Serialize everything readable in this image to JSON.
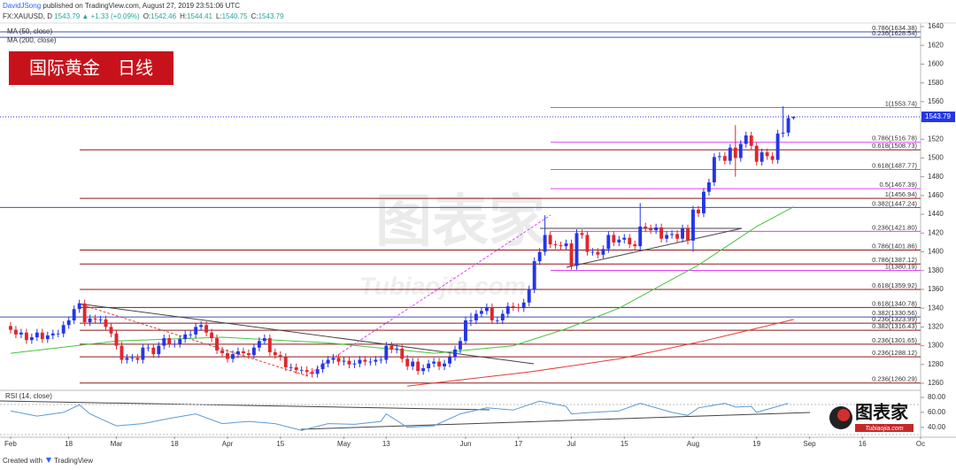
{
  "header": {
    "author": "DavidJSong",
    "published": "published on TradingView.com, August 27, 2019 23:51:06 UTC",
    "symbol": "FX:XAUUSD, D",
    "last": "1543.79",
    "change": "▲ +1.33 (+0.09%)",
    "ohlc": [
      {
        "key": "O:",
        "value": "1542.46"
      },
      {
        "key": "H:",
        "value": "1544.41"
      },
      {
        "key": "L:",
        "value": "1540.75"
      },
      {
        "key": "C:",
        "value": "1543.79"
      }
    ]
  },
  "chart_data": {
    "type": "candlestick",
    "title": "国际黄金　日线",
    "up_color": "#2336e8",
    "down_color": "#e0262c",
    "xlim": [
      -2,
      172
    ],
    "xticks": [
      {
        "value": 0,
        "label": "Feb"
      },
      {
        "value": 11,
        "label": "18"
      },
      {
        "value": 20,
        "label": "Mar"
      },
      {
        "value": 31,
        "label": "18"
      },
      {
        "value": 41,
        "label": "Apr"
      },
      {
        "value": 51,
        "label": "15"
      },
      {
        "value": 63,
        "label": "May"
      },
      {
        "value": 71,
        "label": "13"
      },
      {
        "value": 86,
        "label": "Jun"
      },
      {
        "value": 96,
        "label": "17"
      },
      {
        "value": 106,
        "label": "Jul"
      },
      {
        "value": 116,
        "label": "15"
      },
      {
        "value": 129,
        "label": "Aug"
      },
      {
        "value": 141,
        "label": "19"
      },
      {
        "value": 151,
        "label": "Sep"
      },
      {
        "value": 161,
        "label": "16"
      },
      {
        "value": 172,
        "label": "Oc"
      }
    ],
    "ylim": [
      1253.4,
      1641.9
    ],
    "yticks": [
      1260,
      1280,
      1300,
      1320,
      1340,
      1360,
      1380,
      1400,
      1420,
      1440,
      1460,
      1480,
      1500,
      1520,
      1540,
      1560,
      1580,
      1600,
      1620,
      1640
    ],
    "candles": [
      [
        1321,
        1325,
        1313,
        1317
      ],
      [
        1317,
        1321,
        1308,
        1312
      ],
      [
        1312,
        1318,
        1308,
        1314
      ],
      [
        1314,
        1318,
        1302,
        1306
      ],
      [
        1306,
        1313,
        1302,
        1309
      ],
      [
        1309,
        1318,
        1305,
        1314
      ],
      [
        1314,
        1318,
        1303,
        1307
      ],
      [
        1307,
        1315,
        1303,
        1311
      ],
      [
        1311,
        1317,
        1307,
        1313
      ],
      [
        1313,
        1317,
        1309,
        1313
      ],
      [
        1313,
        1326,
        1309,
        1322
      ],
      [
        1322,
        1331,
        1318,
        1327
      ],
      [
        1327,
        1343,
        1323,
        1339
      ],
      [
        1339,
        1349,
        1335,
        1345
      ],
      [
        1345,
        1349,
        1321,
        1325
      ],
      [
        1325,
        1333,
        1321,
        1329
      ],
      [
        1329,
        1333,
        1324,
        1328
      ],
      [
        1328,
        1332,
        1324,
        1328
      ],
      [
        1328,
        1332,
        1316,
        1320
      ],
      [
        1320,
        1324,
        1309,
        1313
      ],
      [
        1313,
        1317,
        1296,
        1300
      ],
      [
        1300,
        1304,
        1281,
        1285
      ],
      [
        1285,
        1291,
        1281,
        1287
      ],
      [
        1287,
        1291,
        1283,
        1287
      ],
      [
        1287,
        1291,
        1281,
        1285
      ],
      [
        1285,
        1302,
        1281,
        1298
      ],
      [
        1298,
        1302,
        1294,
        1298
      ],
      [
        1298,
        1302,
        1287,
        1291
      ],
      [
        1291,
        1304,
        1287,
        1300
      ],
      [
        1300,
        1312,
        1296,
        1308
      ],
      [
        1308,
        1312,
        1298,
        1302
      ],
      [
        1302,
        1306,
        1298,
        1302
      ],
      [
        1302,
        1311,
        1298,
        1307
      ],
      [
        1307,
        1316,
        1303,
        1312
      ],
      [
        1312,
        1316,
        1308,
        1312
      ],
      [
        1312,
        1324,
        1308,
        1320
      ],
      [
        1320,
        1326,
        1316,
        1322
      ],
      [
        1322,
        1326,
        1310,
        1314
      ],
      [
        1314,
        1318,
        1304,
        1308
      ],
      [
        1308,
        1312,
        1291,
        1295
      ],
      [
        1295,
        1299,
        1288,
        1292
      ],
      [
        1292,
        1296,
        1282,
        1286
      ],
      [
        1286,
        1295,
        1282,
        1291
      ],
      [
        1291,
        1298,
        1287,
        1294
      ],
      [
        1294,
        1298,
        1288,
        1292
      ],
      [
        1292,
        1296,
        1286,
        1290
      ],
      [
        1290,
        1302,
        1286,
        1298
      ],
      [
        1298,
        1309,
        1294,
        1305
      ],
      [
        1305,
        1312,
        1301,
        1308
      ],
      [
        1308,
        1312,
        1289,
        1293
      ],
      [
        1293,
        1297,
        1286,
        1290
      ],
      [
        1290,
        1294,
        1284,
        1288
      ],
      [
        1288,
        1292,
        1273,
        1277
      ],
      [
        1277,
        1281,
        1273,
        1277
      ],
      [
        1277,
        1281,
        1270,
        1274
      ],
      [
        1274,
        1278,
        1270,
        1274
      ],
      [
        1274,
        1278,
        1268,
        1272
      ],
      [
        1272,
        1276,
        1266,
        1270
      ],
      [
        1270,
        1279,
        1266,
        1275
      ],
      [
        1275,
        1285,
        1271,
        1281
      ],
      [
        1281,
        1289,
        1277,
        1285
      ],
      [
        1285,
        1291,
        1281,
        1287
      ],
      [
        1287,
        1291,
        1279,
        1283
      ],
      [
        1283,
        1288,
        1279,
        1284
      ],
      [
        1284,
        1288,
        1276,
        1280
      ],
      [
        1280,
        1285,
        1276,
        1281
      ],
      [
        1281,
        1289,
        1277,
        1285
      ],
      [
        1285,
        1289,
        1279,
        1283
      ],
      [
        1283,
        1287,
        1279,
        1283
      ],
      [
        1283,
        1289,
        1279,
        1285
      ],
      [
        1285,
        1289,
        1281,
        1285
      ],
      [
        1285,
        1304,
        1281,
        1300
      ],
      [
        1300,
        1304,
        1292,
        1296
      ],
      [
        1296,
        1301,
        1292,
        1297
      ],
      [
        1297,
        1301,
        1282,
        1286
      ],
      [
        1286,
        1290,
        1274,
        1278
      ],
      [
        1278,
        1287,
        1274,
        1283
      ],
      [
        1283,
        1287,
        1269,
        1273
      ],
      [
        1273,
        1280,
        1269,
        1276
      ],
      [
        1276,
        1285,
        1272,
        1281
      ],
      [
        1281,
        1287,
        1277,
        1283
      ],
      [
        1283,
        1287,
        1274,
        1278
      ],
      [
        1278,
        1285,
        1274,
        1281
      ],
      [
        1281,
        1292,
        1277,
        1288
      ],
      [
        1288,
        1300,
        1284,
        1296
      ],
      [
        1296,
        1309,
        1292,
        1305
      ],
      [
        1305,
        1331,
        1301,
        1327
      ],
      [
        1327,
        1335,
        1321,
        1327
      ],
      [
        1327,
        1338,
        1323,
        1334
      ],
      [
        1334,
        1341,
        1330,
        1337
      ],
      [
        1337,
        1345,
        1333,
        1341
      ],
      [
        1341,
        1345,
        1323,
        1327
      ],
      [
        1327,
        1331,
        1323,
        1327
      ],
      [
        1327,
        1338,
        1323,
        1334
      ],
      [
        1334,
        1346,
        1330,
        1342
      ],
      [
        1342,
        1346,
        1337,
        1341
      ],
      [
        1341,
        1345,
        1336,
        1340
      ],
      [
        1340,
        1350,
        1336,
        1346
      ],
      [
        1346,
        1364,
        1342,
        1360
      ],
      [
        1360,
        1394,
        1356,
        1390
      ],
      [
        1390,
        1404,
        1386,
        1400
      ],
      [
        1400,
        1439,
        1396,
        1418
      ],
      [
        1418,
        1422,
        1404,
        1408
      ],
      [
        1408,
        1412,
        1403,
        1407
      ],
      [
        1407,
        1411,
        1402,
        1406
      ],
      [
        1406,
        1413,
        1402,
        1409
      ],
      [
        1409,
        1413,
        1381,
        1385
      ],
      [
        1385,
        1424,
        1381,
        1420
      ],
      [
        1420,
        1424,
        1414,
        1418
      ],
      [
        1418,
        1422,
        1396,
        1400
      ],
      [
        1400,
        1404,
        1396,
        1400
      ],
      [
        1400,
        1404,
        1393,
        1397
      ],
      [
        1397,
        1407,
        1393,
        1403
      ],
      [
        1403,
        1422,
        1399,
        1418
      ],
      [
        1418,
        1422,
        1406,
        1410
      ],
      [
        1410,
        1417,
        1406,
        1413
      ],
      [
        1413,
        1419,
        1409,
        1415
      ],
      [
        1415,
        1419,
        1404,
        1408
      ],
      [
        1408,
        1412,
        1402,
        1406
      ],
      [
        1406,
        1452,
        1402,
        1427
      ],
      [
        1427,
        1431,
        1421,
        1425
      ],
      [
        1425,
        1429,
        1419,
        1423
      ],
      [
        1423,
        1430,
        1419,
        1426
      ],
      [
        1426,
        1430,
        1410,
        1414
      ],
      [
        1414,
        1422,
        1410,
        1418
      ],
      [
        1418,
        1423,
        1414,
        1419
      ],
      [
        1419,
        1423,
        1410,
        1414
      ],
      [
        1414,
        1429,
        1410,
        1425
      ],
      [
        1425,
        1429,
        1408,
        1412
      ],
      [
        1412,
        1449,
        1400,
        1445
      ],
      [
        1445,
        1449,
        1437,
        1441
      ],
      [
        1441,
        1468,
        1437,
        1464
      ],
      [
        1464,
        1478,
        1460,
        1474
      ],
      [
        1474,
        1505,
        1470,
        1501
      ],
      [
        1501,
        1506,
        1497,
        1502
      ],
      [
        1502,
        1506,
        1493,
        1497
      ],
      [
        1497,
        1515,
        1493,
        1511
      ],
      [
        1511,
        1535,
        1480,
        1500
      ],
      [
        1500,
        1519,
        1496,
        1515
      ],
      [
        1515,
        1528,
        1511,
        1524
      ],
      [
        1524,
        1528,
        1509,
        1513
      ],
      [
        1513,
        1517,
        1492,
        1496
      ],
      [
        1496,
        1510,
        1492,
        1506
      ],
      [
        1506,
        1510,
        1498,
        1502
      ],
      [
        1502,
        1506,
        1494,
        1498
      ],
      [
        1498,
        1530,
        1494,
        1526
      ],
      [
        1526,
        1555,
        1522,
        1527
      ],
      [
        1527,
        1546,
        1523,
        1542.46
      ],
      [
        1542.46,
        1544.41,
        1540.75,
        1543.79
      ]
    ],
    "indicators": [
      {
        "name": "MA (50, close)",
        "color": "#43c43a",
        "x": [
          0,
          20,
          40,
          60,
          80,
          95,
          105,
          115,
          130,
          141,
          148
        ],
        "values": [
          1292,
          1305,
          1309,
          1303,
          1292,
          1300,
          1318,
          1340,
          1386,
          1427,
          1448
        ]
      },
      {
        "name": "MA (200, close)",
        "color": "#e53935",
        "x": [
          75,
          98,
          115,
          131,
          148
        ],
        "values": [
          1257,
          1272,
          1286,
          1305,
          1328
        ]
      }
    ],
    "fibs": [
      {
        "label": "0.786(1634.38)",
        "value": 1634.38,
        "color": "#3f51b5"
      },
      {
        "label": "0.236(1628.54)",
        "value": 1628.54,
        "color": "#3f51b5"
      },
      {
        "label": "1(1553.74)",
        "value": 1553.74,
        "color": "#e040fb"
      },
      {
        "label": "0.786(1516.78)",
        "value": 1516.78,
        "color": "#e040fb"
      },
      {
        "label": "0.618(1508.73)",
        "value": 1508.73,
        "color": "#8b1a1a"
      },
      {
        "label": "0.618(1487.77)",
        "value": 1487.77,
        "color": "#e040fb"
      },
      {
        "label": "0.5(1467.39)",
        "value": 1467.39,
        "color": "#e040fb"
      },
      {
        "label": "1(1456.94)",
        "value": 1456.94,
        "color": "#8b1a1a"
      },
      {
        "label": "0.382(1447.24)",
        "value": 1447.24,
        "color": "#3f51b5"
      },
      {
        "label": "0.236(1421.80)",
        "value": 1421.8,
        "color": "#e040fb"
      },
      {
        "label": "0.786(1401.86)",
        "value": 1401.86,
        "color": "#8b1a1a"
      },
      {
        "label": "0.786(1387.12)",
        "value": 1387.12,
        "color": "#8b1a1a"
      },
      {
        "label": "1(1380.19)",
        "value": 1380.19,
        "color": "#e040fb"
      },
      {
        "label": "0.618(1359.92)",
        "value": 1359.92,
        "color": "#8b1a1a"
      },
      {
        "label": "0.618(1340.78)",
        "value": 1340.78,
        "color": "#8b1a1a"
      },
      {
        "label": "0.382(1330.56)",
        "value": 1330.56,
        "color": "#3f51b5"
      },
      {
        "label": "0.236(1323.99)",
        "value": 1323.99,
        "color": "#8b1a1a"
      },
      {
        "label": "0.382(1316.43)",
        "value": 1316.43,
        "color": "#8b1a1a"
      },
      {
        "label": "0.236(1301.65)",
        "value": 1301.65,
        "color": "#8b1a1a"
      },
      {
        "label": "0.236(1288.12)",
        "value": 1288.12,
        "color": "#8b1a1a"
      },
      {
        "label": "0.236(1260.29)",
        "value": 1260.29,
        "color": "#8b1a1a"
      }
    ],
    "rsi": {
      "name": "RSI (14, close)",
      "color": "#5b9bd5",
      "ylim": [
        28,
        87
      ],
      "yticks": [
        {
          "value": 80,
          "label": "80.00"
        },
        {
          "value": 60,
          "label": "60.00"
        },
        {
          "value": 40,
          "label": "40.00"
        }
      ],
      "x": [
        0,
        5,
        10,
        13,
        15,
        20,
        25,
        30,
        35,
        40,
        45,
        50,
        55,
        60,
        65,
        70,
        71,
        75,
        80,
        85,
        90,
        95,
        100,
        105,
        106,
        110,
        115,
        119,
        125,
        128,
        130,
        135,
        137,
        140,
        141,
        145,
        147
      ],
      "values": [
        62,
        55,
        60,
        70,
        58,
        42,
        45,
        52,
        58,
        45,
        48,
        45,
        36,
        45,
        44,
        48,
        58,
        40,
        42,
        58,
        66,
        63,
        75,
        68,
        58,
        60,
        62,
        72,
        60,
        56,
        66,
        72,
        67,
        68,
        60,
        68,
        72
      ]
    }
  },
  "watermark": {
    "text": "图表家",
    "domain": "Tubiaojia.com"
  },
  "logo": {
    "text": "图表家",
    "domain": "Tubiaojia.com"
  },
  "footer": {
    "created": "Created with",
    "brand": "TradingView"
  }
}
